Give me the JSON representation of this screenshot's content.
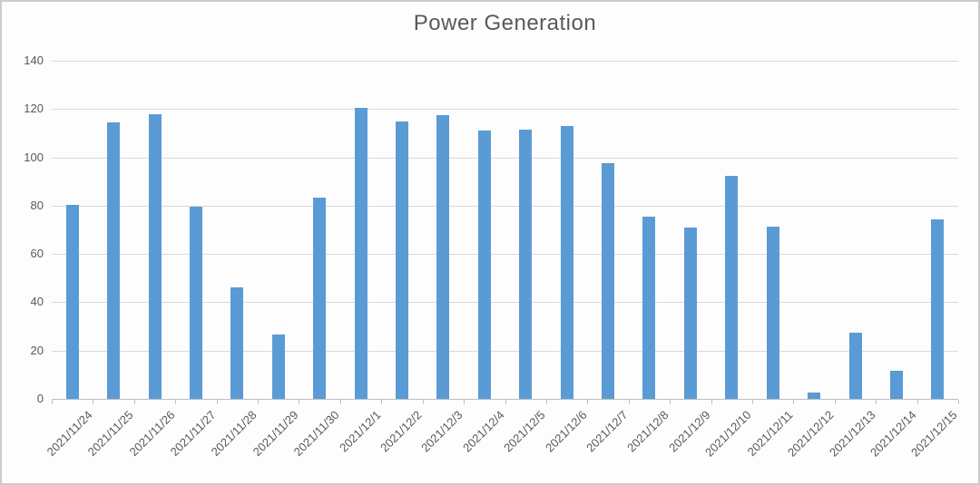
{
  "chart_data": {
    "type": "bar",
    "title": "Power Generation",
    "categories": [
      "2021/11/24",
      "2021/11/25",
      "2021/11/26",
      "2021/11/27",
      "2021/11/28",
      "2021/11/29",
      "2021/11/30",
      "2021/12/1",
      "2021/12/2",
      "2021/12/3",
      "2021/12/4",
      "2021/12/5",
      "2021/12/6",
      "2021/12/7",
      "2021/12/8",
      "2021/12/9",
      "2021/12/10",
      "2021/12/11",
      "2021/12/12",
      "2021/12/13",
      "2021/12/14",
      "2021/12/15"
    ],
    "values": [
      80.5,
      114.5,
      118,
      79.5,
      46,
      26.5,
      83.5,
      120.5,
      115,
      117.5,
      111,
      111.5,
      113,
      97.5,
      75.5,
      71,
      92.5,
      71.5,
      2.5,
      27.5,
      11.5,
      74.5
    ],
    "xlabel": "",
    "ylabel": "",
    "ylim": [
      0,
      140
    ],
    "yticks": [
      0,
      20,
      40,
      60,
      80,
      100,
      120,
      140
    ],
    "grid": true,
    "legend": false,
    "x_label_rotation_deg": -45
  },
  "colors": {
    "bar": "#5B9BD5",
    "gridline": "#D9D9D9",
    "axis_line": "#BFBFBF",
    "tick_text": "#595959",
    "title_text": "#595959",
    "chart_border": "#CBCBCB",
    "background": "#FDFDFD"
  }
}
